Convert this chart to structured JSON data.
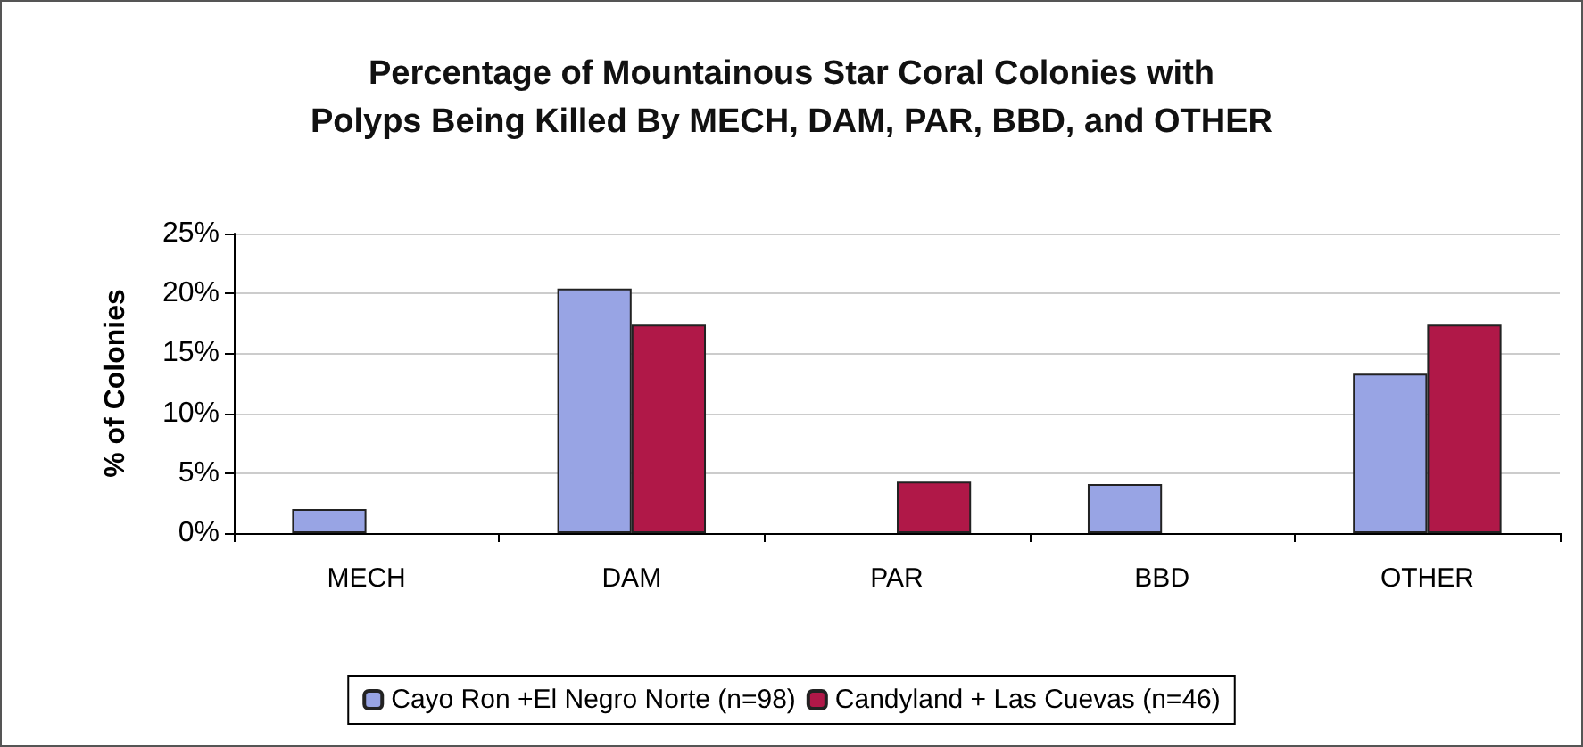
{
  "chart_data": {
    "type": "bar",
    "title": "Percentage of Mountainous Star Coral Colonies with\nPolyps Being Killed By MECH, DAM, PAR, BBD, and OTHER",
    "ylabel": "% of Colonies",
    "categories": [
      "MECH",
      "DAM",
      "PAR",
      "BBD",
      "OTHER"
    ],
    "series": [
      {
        "name": "Cayo Ron +El Negro Norte (n=98)",
        "color": "#98a4e4",
        "values": [
          2,
          20.4,
          0,
          4.1,
          13.3
        ]
      },
      {
        "name": "Candyland + Las Cuevas (n=46)",
        "color": "#b01848",
        "values": [
          0,
          17.4,
          4.3,
          0,
          17.4
        ]
      }
    ],
    "ylim": [
      0,
      25
    ],
    "yticks": [
      {
        "value": 0,
        "label": "0%"
      },
      {
        "value": 5,
        "label": "5%"
      },
      {
        "value": 10,
        "label": "10%"
      },
      {
        "value": 15,
        "label": "15%"
      },
      {
        "value": 20,
        "label": "20%"
      },
      {
        "value": 25,
        "label": "25%"
      }
    ],
    "grid": "y",
    "legend": "bottom"
  }
}
